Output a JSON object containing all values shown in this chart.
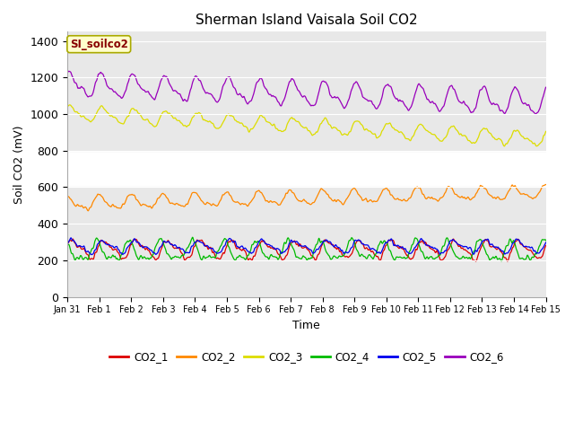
{
  "title": "Sherman Island Vaisala Soil CO2",
  "ylabel": "Soil CO2 (mV)",
  "xlabel": "Time",
  "ylim": [
    0,
    1450
  ],
  "yticks": [
    0,
    200,
    400,
    600,
    800,
    1000,
    1200,
    1400
  ],
  "num_days": 15,
  "num_points": 2160,
  "series": {
    "CO2_1": {
      "color": "#dd0000",
      "base": 260,
      "amp": 50,
      "trend": 0.0
    },
    "CO2_2": {
      "color": "#ff8800",
      "base": 510,
      "amp": 38,
      "trend": 2.5
    },
    "CO2_3": {
      "color": "#dddd00",
      "base": 1005,
      "amp": 38,
      "trend": -8.5
    },
    "CO2_4": {
      "color": "#00bb00",
      "base": 245,
      "amp": 55,
      "trend": 0.0
    },
    "CO2_5": {
      "color": "#0000ee",
      "base": 275,
      "amp": 30,
      "trend": 0.0
    },
    "CO2_6": {
      "color": "#9900bb",
      "base": 1160,
      "amp": 65,
      "trend": -5.0
    }
  },
  "xtick_labels": [
    "Jan 31",
    "Feb 1",
    "Feb 2",
    "Feb 3",
    "Feb 4",
    "Feb 5",
    "Feb 6",
    "Feb 7",
    "Feb 8",
    "Feb 9",
    "Feb 10",
    "Feb 11",
    "Feb 12",
    "Feb 13",
    "Feb 14",
    "Feb 15"
  ],
  "legend_entries": [
    "CO2_1",
    "CO2_2",
    "CO2_3",
    "CO2_4",
    "CO2_5",
    "CO2_6"
  ],
  "legend_colors": [
    "#dd0000",
    "#ff8800",
    "#dddd00",
    "#00bb00",
    "#0000ee",
    "#9900bb"
  ],
  "band_color": "#e8e8e8",
  "text_box_label": "SI_soilco2",
  "text_box_bg": "#ffffcc",
  "text_box_border": "#aaaa00",
  "text_box_text_color": "#880000",
  "bg_color": "#ffffff"
}
